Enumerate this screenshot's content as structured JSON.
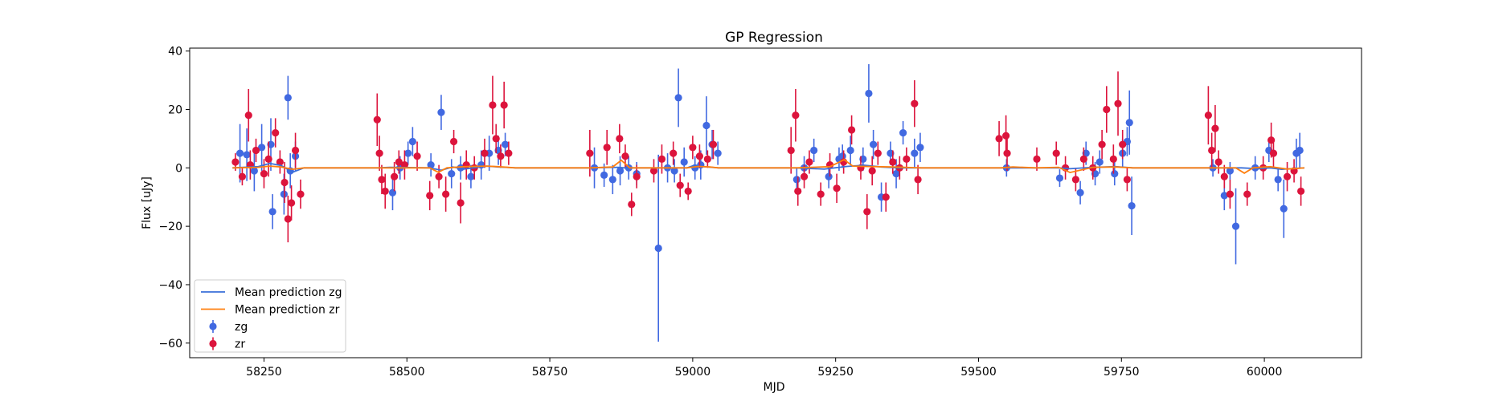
{
  "chart_data": {
    "type": "scatter",
    "title": "GP Regression",
    "xlabel": "MJD",
    "ylabel": "Flux [uJy]",
    "xlim": [
      58120,
      60170
    ],
    "ylim": [
      -65,
      41
    ],
    "xticks": [
      58250,
      58500,
      58750,
      59000,
      59250,
      59500,
      59750,
      60000
    ],
    "yticks": [
      -60,
      -40,
      -20,
      0,
      20,
      40
    ],
    "grid": false,
    "legend_position": "lower-left",
    "series": [
      {
        "name": "Mean prediction zg",
        "kind": "line",
        "color": "#3a6fd8",
        "x": [
          58195,
          58240,
          58260,
          58280,
          58300,
          58320,
          58450,
          58470,
          58540,
          58560,
          58580,
          58600,
          58640,
          58660,
          58690,
          58820,
          58870,
          58880,
          58890,
          58990,
          59000,
          59020,
          59045,
          59180,
          59230,
          59270,
          59300,
          59330,
          59360,
          59400,
          59540,
          59600,
          59640,
          59660,
          59700,
          59740,
          59770,
          59900,
          59960,
          59990,
          60010,
          60030,
          60070
        ],
        "y": [
          0,
          0.4,
          1.5,
          0.8,
          -1.5,
          0,
          0,
          0.2,
          0,
          -0.8,
          0.3,
          -0.4,
          0.6,
          0.3,
          0,
          0,
          0.2,
          0,
          0,
          0,
          0.7,
          0.4,
          0,
          0,
          -0.4,
          0.5,
          0.9,
          0.3,
          0,
          0,
          0,
          0,
          0,
          -0.3,
          0.2,
          0.4,
          0,
          0,
          0,
          -0.3,
          0,
          -0.5,
          0
        ]
      },
      {
        "name": "Mean prediction zr",
        "kind": "line",
        "color": "#ff7f0e",
        "x": [
          58195,
          58240,
          58260,
          58280,
          58300,
          58320,
          58450,
          58470,
          58540,
          58555,
          58570,
          58600,
          58640,
          58660,
          58690,
          58820,
          58860,
          58875,
          58890,
          58990,
          59010,
          59030,
          59045,
          59180,
          59240,
          59265,
          59280,
          59300,
          59350,
          59400,
          59540,
          59560,
          59600,
          59640,
          59660,
          59700,
          59740,
          59770,
          59900,
          59950,
          59965,
          59980,
          60010,
          60040,
          60070
        ],
        "y": [
          0,
          0.2,
          0.6,
          0.3,
          -0.5,
          0,
          0,
          0,
          0,
          -1.5,
          0,
          0.4,
          0.6,
          0.4,
          0,
          0,
          0.3,
          2.6,
          0,
          0,
          0.5,
          0.3,
          0,
          0,
          0.4,
          2.8,
          0.6,
          0.5,
          0.3,
          0,
          0,
          0.3,
          0,
          0.2,
          -1.6,
          0.2,
          0.3,
          0,
          0,
          0,
          -1.8,
          0,
          0.4,
          -0.4,
          0
        ]
      },
      {
        "name": "zg",
        "kind": "errorbar",
        "color": "#4169e1",
        "points": [
          [
            58208,
            5,
            10
          ],
          [
            58220,
            4.5,
            9
          ],
          [
            58233,
            -1,
            7
          ],
          [
            58246,
            7,
            8
          ],
          [
            58262,
            8,
            9
          ],
          [
            58265,
            -15,
            6
          ],
          [
            58285,
            -9,
            7
          ],
          [
            58292,
            24,
            7.5
          ],
          [
            58296,
            -1,
            6
          ],
          [
            58305,
            4,
            5
          ],
          [
            58475,
            -8.5,
            6
          ],
          [
            58488,
            0,
            4
          ],
          [
            58502,
            5,
            4
          ],
          [
            58510,
            9,
            5
          ],
          [
            58542,
            1,
            4
          ],
          [
            58560,
            19,
            6
          ],
          [
            58578,
            -2,
            5
          ],
          [
            58594,
            0,
            4
          ],
          [
            58612,
            -3,
            4
          ],
          [
            58630,
            1,
            5
          ],
          [
            58644,
            5,
            6
          ],
          [
            58660,
            6,
            5
          ],
          [
            58672,
            8,
            4
          ],
          [
            58828,
            0,
            7
          ],
          [
            58845,
            -2.5,
            4
          ],
          [
            58860,
            -4,
            5
          ],
          [
            58873,
            -1,
            5
          ],
          [
            58888,
            0,
            4
          ],
          [
            58902,
            -2,
            4
          ],
          [
            58940,
            -27.5,
            32
          ],
          [
            58956,
            0,
            5
          ],
          [
            58968,
            -1,
            4
          ],
          [
            58975,
            24,
            10
          ],
          [
            58985,
            2,
            5
          ],
          [
            59004,
            0,
            4
          ],
          [
            59014,
            1,
            5
          ],
          [
            59024,
            14.5,
            10
          ],
          [
            59034,
            8,
            5
          ],
          [
            59044,
            5,
            4
          ],
          [
            59182,
            -4,
            4
          ],
          [
            59195,
            0,
            4
          ],
          [
            59212,
            6,
            4
          ],
          [
            59238,
            -3,
            4
          ],
          [
            59256,
            3,
            4
          ],
          [
            59262,
            4,
            4
          ],
          [
            59276,
            6,
            5
          ],
          [
            59298,
            3,
            4
          ],
          [
            59308,
            25.5,
            10
          ],
          [
            59316,
            8,
            5
          ],
          [
            59330,
            -10,
            5
          ],
          [
            59346,
            5,
            4
          ],
          [
            59356,
            -2,
            5
          ],
          [
            59368,
            12,
            4
          ],
          [
            59388,
            5,
            5
          ],
          [
            59398,
            7,
            5
          ],
          [
            59549,
            0,
            3
          ],
          [
            59642,
            -3.5,
            3
          ],
          [
            59678,
            -8.5,
            4
          ],
          [
            59688,
            5,
            4
          ],
          [
            59704,
            -2,
            4
          ],
          [
            59712,
            2,
            4
          ],
          [
            59738,
            -2,
            4
          ],
          [
            59752,
            5,
            5
          ],
          [
            59760,
            9,
            5
          ],
          [
            59764,
            15.5,
            11
          ],
          [
            59768,
            -13,
            10
          ],
          [
            59910,
            0,
            3
          ],
          [
            59930,
            -9.5,
            5
          ],
          [
            59940,
            -1,
            3
          ],
          [
            59950,
            -20,
            13
          ],
          [
            59984,
            0,
            4
          ],
          [
            60008,
            6,
            4
          ],
          [
            60024,
            -4,
            4
          ],
          [
            60034,
            -14,
            10
          ],
          [
            60056,
            5,
            5
          ],
          [
            60062,
            6,
            6
          ]
        ]
      },
      {
        "name": "zr",
        "kind": "errorbar",
        "color": "#dc143c",
        "points": [
          [
            58200,
            2,
            3
          ],
          [
            58212,
            -3,
            3
          ],
          [
            58223,
            18,
            9
          ],
          [
            58226,
            1,
            5
          ],
          [
            58236,
            6,
            4
          ],
          [
            58250,
            -2,
            5
          ],
          [
            58258,
            3,
            6
          ],
          [
            58270,
            12,
            5
          ],
          [
            58278,
            2,
            4
          ],
          [
            58286,
            -5,
            7
          ],
          [
            58292,
            -17.5,
            8
          ],
          [
            58298,
            -12,
            6
          ],
          [
            58305,
            6,
            6
          ],
          [
            58314,
            -9,
            5
          ],
          [
            58448,
            16.5,
            9
          ],
          [
            58452,
            5,
            6
          ],
          [
            58456,
            -4,
            5
          ],
          [
            58462,
            -8,
            6
          ],
          [
            58478,
            -3,
            5
          ],
          [
            58486,
            2,
            4
          ],
          [
            58496,
            1,
            5
          ],
          [
            58518,
            4,
            5
          ],
          [
            58540,
            -9.5,
            5
          ],
          [
            58556,
            -3,
            4
          ],
          [
            58568,
            -9,
            6
          ],
          [
            58582,
            9,
            4
          ],
          [
            58594,
            -12,
            7
          ],
          [
            58604,
            1,
            5
          ],
          [
            58618,
            0,
            4
          ],
          [
            58636,
            5,
            5
          ],
          [
            58650,
            21.5,
            10
          ],
          [
            58656,
            10,
            5
          ],
          [
            58664,
            4,
            4
          ],
          [
            58670,
            21.5,
            8
          ],
          [
            58678,
            5,
            4
          ],
          [
            58820,
            5,
            8
          ],
          [
            58850,
            7,
            6
          ],
          [
            58872,
            10,
            5
          ],
          [
            58882,
            4,
            4
          ],
          [
            58893,
            -12.5,
            4
          ],
          [
            58902,
            -3,
            4
          ],
          [
            58932,
            -1,
            4
          ],
          [
            58946,
            3,
            5
          ],
          [
            58966,
            5,
            4
          ],
          [
            58978,
            -6,
            4
          ],
          [
            58992,
            -8,
            3
          ],
          [
            59000,
            7,
            4
          ],
          [
            59012,
            4,
            4
          ],
          [
            59026,
            3,
            3
          ],
          [
            59036,
            8,
            5
          ],
          [
            59172,
            6,
            8
          ],
          [
            59180,
            18,
            9
          ],
          [
            59184,
            -8,
            5
          ],
          [
            59195,
            -3,
            4
          ],
          [
            59204,
            2,
            4
          ],
          [
            59224,
            -9,
            4
          ],
          [
            59240,
            1,
            4
          ],
          [
            59252,
            -7,
            5
          ],
          [
            59264,
            2,
            4
          ],
          [
            59278,
            13,
            5
          ],
          [
            59294,
            0,
            4
          ],
          [
            59305,
            -15,
            6
          ],
          [
            59314,
            -1,
            5
          ],
          [
            59324,
            5,
            4
          ],
          [
            59338,
            -10,
            5
          ],
          [
            59350,
            2,
            4
          ],
          [
            59362,
            0,
            4
          ],
          [
            59374,
            3,
            4
          ],
          [
            59388,
            22,
            8
          ],
          [
            59394,
            -4,
            5
          ],
          [
            59536,
            10,
            6
          ],
          [
            59548,
            11,
            7
          ],
          [
            59550,
            5,
            6
          ],
          [
            59602,
            3,
            4
          ],
          [
            59636,
            5,
            4
          ],
          [
            59652,
            0,
            4
          ],
          [
            59670,
            -4,
            4
          ],
          [
            59684,
            3,
            4
          ],
          [
            59700,
            0,
            4
          ],
          [
            59716,
            8,
            5
          ],
          [
            59724,
            20,
            8
          ],
          [
            59736,
            3,
            5
          ],
          [
            59744,
            22,
            11
          ],
          [
            59752,
            8,
            5
          ],
          [
            59760,
            -4,
            4
          ],
          [
            59902,
            18,
            10
          ],
          [
            59908,
            6,
            6
          ],
          [
            59914,
            13.5,
            8
          ],
          [
            59920,
            2,
            4
          ],
          [
            59930,
            -3,
            4
          ],
          [
            59940,
            -9,
            5
          ],
          [
            59970,
            -9,
            4
          ],
          [
            59998,
            0,
            4
          ],
          [
            60012,
            9.5,
            6
          ],
          [
            60016,
            5,
            5
          ],
          [
            60040,
            -3,
            5
          ],
          [
            60052,
            -1,
            4
          ],
          [
            60064,
            -8,
            5
          ]
        ]
      }
    ]
  }
}
